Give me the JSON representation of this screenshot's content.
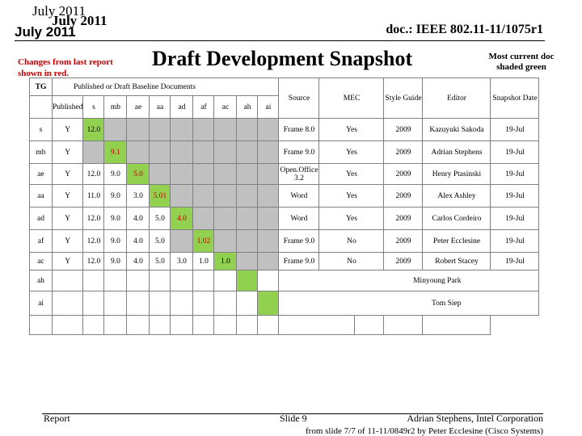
{
  "header": {
    "date_primary": "July 2011",
    "date_secondary": "July 2011",
    "date_tertiary": "July 2011",
    "doc_id": "doc.: IEEE 802.11-11/1075r1"
  },
  "title": "Draft Development Snapshot",
  "changes_note": "Changes from last report shown in red.",
  "shading_note": "Most current doc shaded green",
  "table": {
    "hdr_tg": "TG",
    "hdr_group": "Published or Draft Baseline Documents",
    "hdr_published": "Published",
    "baseline_cols": [
      "s",
      "mb",
      "ae",
      "aa",
      "ad",
      "af",
      "ac",
      "ah",
      "ai"
    ],
    "hdr_source": "Source",
    "hdr_mec": "MEC",
    "hdr_style": "Style Guide",
    "hdr_editor": "Editor",
    "hdr_date": "Snapshot Date",
    "rows": [
      {
        "tg": "s",
        "published": "Y",
        "cells": [
          "12.0",
          "",
          "",
          "",
          "",
          "",
          "",
          "",
          ""
        ],
        "source": "Frame 8.0",
        "mec": "Yes",
        "style": "2009",
        "editor": "Kazuyuki Sakoda",
        "date": "19-Jul"
      },
      {
        "tg": "mb",
        "published": "Y",
        "cells": [
          "",
          "9.1",
          "",
          "",
          "",
          "",
          "",
          "",
          ""
        ],
        "source": "Frame 9.0",
        "mec": "Yes",
        "style": "2009",
        "editor": "Adrian Stephens",
        "date": "19-Jul"
      },
      {
        "tg": "ae",
        "published": "Y",
        "cells": [
          "12.0",
          "9.0",
          "5.0",
          "",
          "",
          "",
          "",
          "",
          ""
        ],
        "source": "Open.Office 3.2",
        "mec": "Yes",
        "style": "2009",
        "editor": "Henry Ptasinski",
        "date": "19-Jul"
      },
      {
        "tg": "aa",
        "published": "Y",
        "cells": [
          "11.0",
          "9.0",
          "3.0",
          "5.01",
          "",
          "",
          "",
          "",
          ""
        ],
        "source": "Word",
        "mec": "Yes",
        "style": "2009",
        "editor": "Alex Ashley",
        "date": "19-Jul"
      },
      {
        "tg": "ad",
        "published": "Y",
        "cells": [
          "12.0",
          "9.0",
          "4.0",
          "5.0",
          "4.0",
          "",
          "",
          "",
          ""
        ],
        "source": "Word",
        "mec": "Yes",
        "style": "2009",
        "editor": "Carlos Cordeiro",
        "date": "19-Jul"
      },
      {
        "tg": "af",
        "published": "Y",
        "cells": [
          "12.0",
          "9.0",
          "4.0",
          "5.0",
          "",
          "1.02",
          "",
          "",
          ""
        ],
        "source": "Frame 9.0",
        "mec": "No",
        "style": "2009",
        "editor": "Peter Ecclesine",
        "date": "19-Jul"
      },
      {
        "tg": "ac",
        "published": "Y",
        "cells": [
          "12.0",
          "9.0",
          "4.0",
          "5.0",
          "3.0",
          "1.0",
          "1.0",
          "",
          ""
        ],
        "source": "Frame 9.0",
        "mec": "No",
        "style": "2009",
        "editor": "Robert Stacey",
        "date": "19-Jul"
      },
      {
        "tg": "ah",
        "published": "",
        "cells": [
          "",
          "",
          "",
          "",
          "",
          "",
          "",
          "",
          ""
        ],
        "source": "",
        "mec": "",
        "style": "",
        "editor": "Minyoung Park",
        "date": ""
      },
      {
        "tg": "ai",
        "published": "",
        "cells": [
          "",
          "",
          "",
          "",
          "",
          "",
          "",
          "",
          ""
        ],
        "source": "",
        "mec": "",
        "style": "",
        "editor": "Tom Siep",
        "date": ""
      }
    ]
  },
  "footer": {
    "left": "Report",
    "slide": "Slide 9",
    "author": "Adrian Stephens, Intel Corporation",
    "source_note": "from slide 7/7 of 11-11/0849r2 by Peter Ecclesine (Cisco Systems)"
  }
}
